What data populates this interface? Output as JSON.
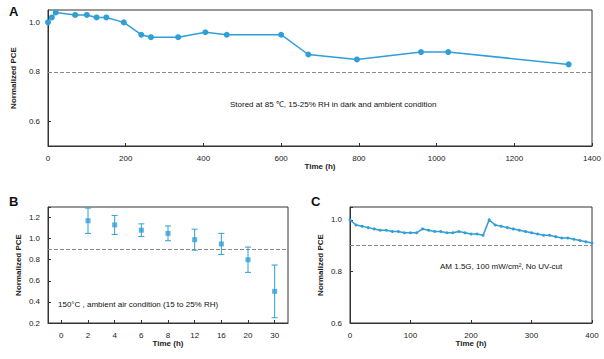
{
  "chart_data": [
    {
      "type": "line",
      "title": "A",
      "annotation": "Stored at 85 ℃, 15-25% RH in dark and ambient condition",
      "xlabel": "Time (h)",
      "ylabel": "Normalized PCE",
      "x": [
        0,
        10,
        20,
        70,
        100,
        125,
        150,
        195,
        240,
        265,
        335,
        405,
        460,
        600,
        670,
        795,
        960,
        1030,
        1340
      ],
      "values": [
        1.0,
        1.02,
        1.04,
        1.03,
        1.03,
        1.02,
        1.02,
        1.0,
        0.95,
        0.94,
        0.94,
        0.96,
        0.95,
        0.95,
        0.87,
        0.85,
        0.88,
        0.88,
        0.83
      ],
      "color": "#2f9fd8",
      "marker": "circle",
      "xlim": [
        0,
        1400
      ],
      "xticks": [
        0,
        200,
        400,
        600,
        800,
        1000,
        1200,
        1400
      ],
      "ylim": [
        0.5,
        1.05
      ],
      "yticks": [
        0.6,
        0.8,
        {
          "value": 1,
          "label": "1.0"
        }
      ],
      "hline": 0.8
    },
    {
      "type": "scatter",
      "title": "B",
      "annotation": "150°C , ambient air condition (15 to 25% RH)",
      "xlabel": "Time (h)",
      "ylabel": "Normalized PCE",
      "categories": [
        "0",
        "2",
        "4",
        "6",
        "8",
        "12",
        "16",
        "20",
        "30"
      ],
      "values": [
        null,
        1.17,
        1.13,
        1.08,
        1.05,
        0.99,
        0.95,
        0.8,
        0.5
      ],
      "errors": [
        null,
        0.12,
        0.09,
        0.06,
        0.07,
        0.1,
        0.1,
        0.12,
        0.25
      ],
      "color": "#2f9fd8",
      "marker": "square",
      "ylim": [
        0.2,
        1.3
      ],
      "yticks": [
        0.2,
        0.4,
        0.6,
        0.8,
        {
          "value": 1,
          "label": "1.0"
        },
        1.2
      ],
      "hline": 0.9
    },
    {
      "type": "line",
      "title": "C",
      "annotation": "AM 1.5G, 100 mW/cm², No UV-cut",
      "xlabel": "Time (h)",
      "ylabel": "Normalized PCE",
      "x": [
        0,
        10,
        20,
        30,
        40,
        50,
        60,
        70,
        80,
        90,
        100,
        110,
        120,
        130,
        140,
        150,
        160,
        170,
        180,
        190,
        200,
        210,
        220,
        230,
        240,
        250,
        260,
        270,
        280,
        290,
        300,
        310,
        320,
        330,
        340,
        350,
        360,
        370,
        380,
        390,
        400
      ],
      "values": [
        1.0,
        0.98,
        0.975,
        0.97,
        0.965,
        0.96,
        0.96,
        0.955,
        0.955,
        0.95,
        0.95,
        0.95,
        0.965,
        0.96,
        0.955,
        0.955,
        0.95,
        0.95,
        0.955,
        0.95,
        0.945,
        0.945,
        0.94,
        1.0,
        0.98,
        0.975,
        0.97,
        0.965,
        0.96,
        0.955,
        0.95,
        0.945,
        0.94,
        0.94,
        0.935,
        0.93,
        0.93,
        0.925,
        0.92,
        0.915,
        0.91
      ],
      "color": "#2f9fd8",
      "marker": "circle",
      "xlim": [
        0,
        400
      ],
      "xticks": [
        0,
        100,
        200,
        300,
        400
      ],
      "ylim": [
        0.6,
        1.05
      ],
      "yticks": [
        0.6,
        0.8,
        {
          "value": 1,
          "label": "1.0"
        }
      ],
      "hline": 0.9
    }
  ]
}
